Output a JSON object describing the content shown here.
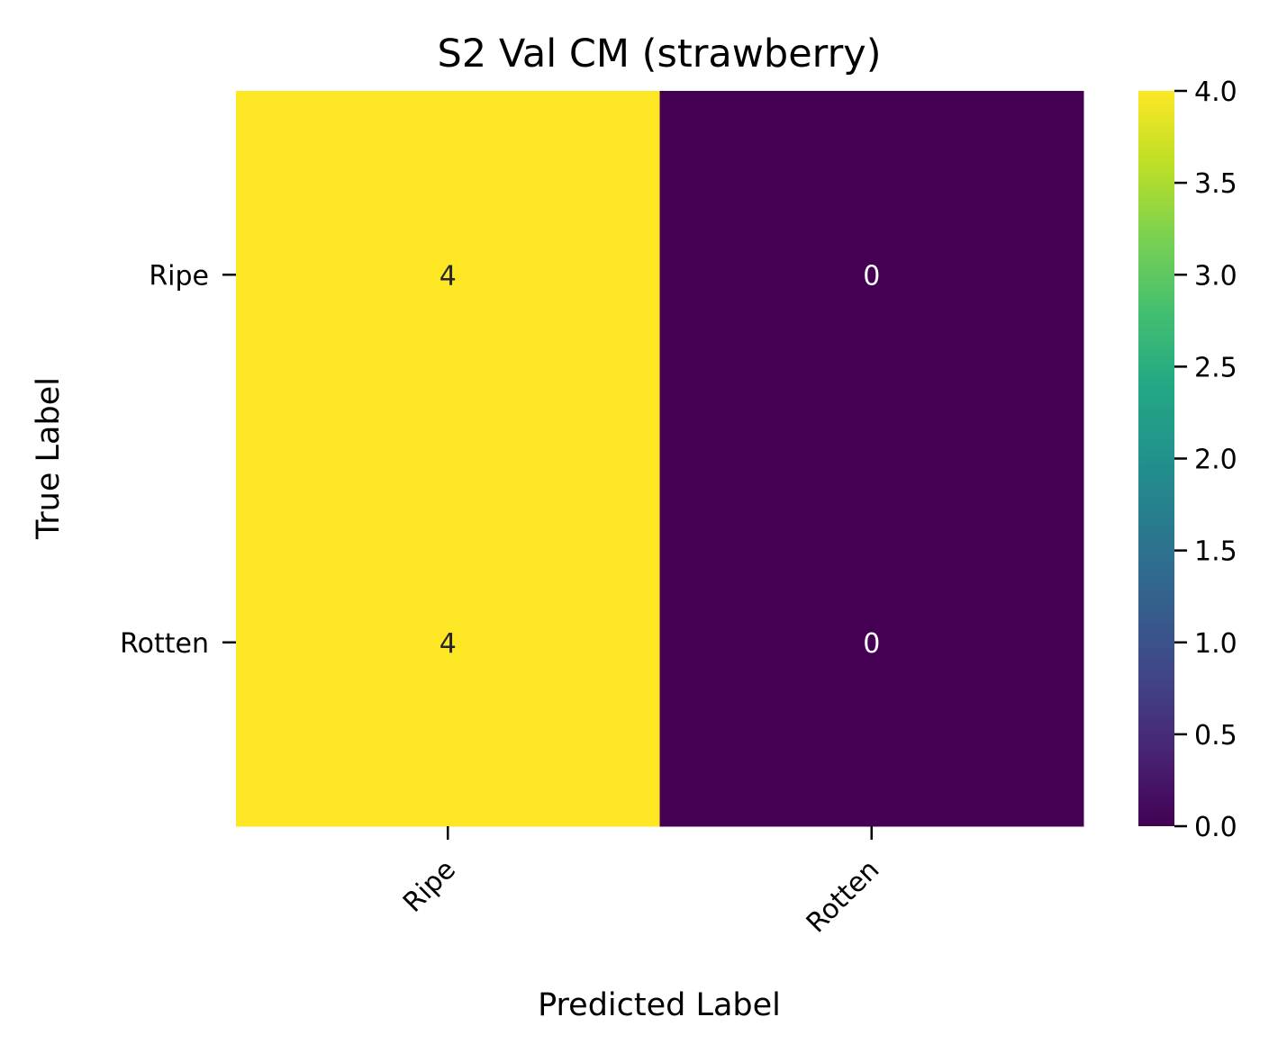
{
  "chart_data": {
    "type": "heatmap",
    "title": "S2 Val CM (strawberry)",
    "xlabel": "Predicted Label",
    "ylabel": "True Label",
    "x_categories": [
      "Ripe",
      "Rotten"
    ],
    "y_categories": [
      "Ripe",
      "Rotten"
    ],
    "values": [
      [
        4,
        0
      ],
      [
        4,
        0
      ]
    ],
    "annotations": true,
    "colormap": "viridis",
    "colorbar": {
      "min": 0.0,
      "max": 4.0,
      "ticks": [
        "0.0",
        "0.5",
        "1.0",
        "1.5",
        "2.0",
        "2.5",
        "3.0",
        "3.5",
        "4.0"
      ]
    },
    "colors": {
      "low": "#440154",
      "high": "#fde725",
      "annotation_on_light": "#262626",
      "annotation_on_dark": "#ffffff"
    },
    "grid": false
  }
}
